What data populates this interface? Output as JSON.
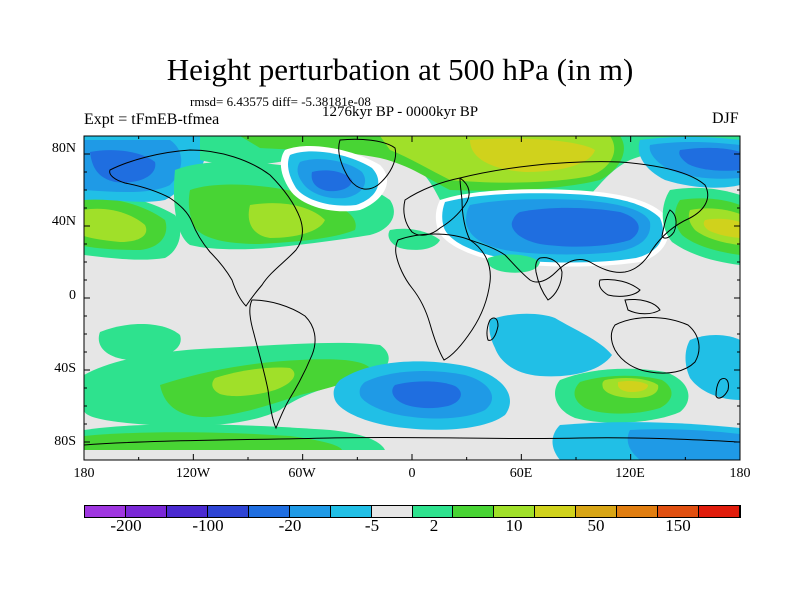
{
  "title": "Height perturbation at 500 hPa (in m)",
  "stats": "rmsd= 6.43575 diff= -5.38181e-08",
  "period": "1276kyr BP - 0000kyr BP",
  "experiment": "Expt = tFmEB-tfmea",
  "season": "DJF",
  "lat_ticks": [
    "80N",
    "40N",
    "0",
    "40S",
    "80S"
  ],
  "lon_ticks": [
    "180",
    "120W",
    "60W",
    "0",
    "60E",
    "120E",
    "180"
  ],
  "colorbar": {
    "colors": [
      "#9f36e0",
      "#7a28d6",
      "#4a2ad0",
      "#2e44d4",
      "#1f6ee0",
      "#1f9ae6",
      "#21bfe6",
      "#e6e6e6",
      "#2ee28e",
      "#48d434",
      "#a0e029",
      "#d0d21c",
      "#d8a515",
      "#e07d10",
      "#e04f10",
      "#e01c0c"
    ],
    "labels": [
      "-200",
      "-100",
      "-20",
      "-5",
      "2",
      "10",
      "50",
      "150"
    ]
  },
  "map_colors": {
    "neutral": "#e6e6e6",
    "cyan": "#21bfe6",
    "light_blue": "#1f9ae6",
    "blue": "#1f6ee0",
    "teal": "#2ee28e",
    "green": "#48d434",
    "yellowgreen": "#a0e029",
    "yellow": "#d0d21c",
    "white": "#ffffff"
  }
}
